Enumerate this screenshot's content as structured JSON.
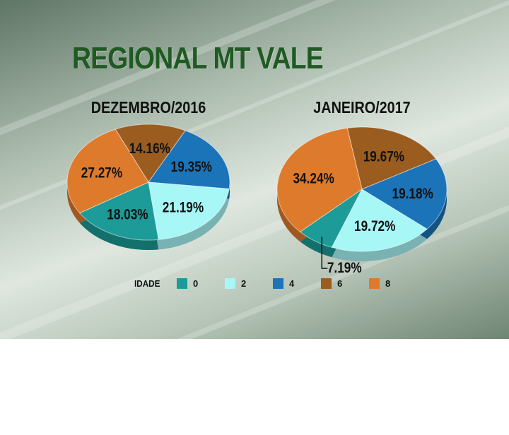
{
  "title": "REGIONAL MT VALE",
  "colors": {
    "0": "#1c9b98",
    "2": "#a8f7f7",
    "4": "#1b73b8",
    "6": "#9b5d1f",
    "8": "#de7a2c",
    "title": "#1f5a22"
  },
  "legend": {
    "label": "IDADE",
    "items": [
      {
        "key": "0",
        "label": "0"
      },
      {
        "key": "2",
        "label": "2"
      },
      {
        "key": "4",
        "label": "4"
      },
      {
        "key": "6",
        "label": "6"
      },
      {
        "key": "8",
        "label": "8"
      }
    ]
  },
  "chart_data": [
    {
      "type": "pie",
      "title": "DEZEMBRO/2016",
      "slices": [
        {
          "category": "6",
          "value": 14.16,
          "label": "14.16%"
        },
        {
          "category": "4",
          "value": 19.35,
          "label": "19.35%"
        },
        {
          "category": "2",
          "value": 21.19,
          "label": "21.19%"
        },
        {
          "category": "0",
          "value": 18.03,
          "label": "18.03%"
        },
        {
          "category": "8",
          "value": 27.27,
          "label": "27.27%"
        }
      ]
    },
    {
      "type": "pie",
      "title": "JANEIRO/2017",
      "slices": [
        {
          "category": "6",
          "value": 19.67,
          "label": "19.67%"
        },
        {
          "category": "4",
          "value": 19.18,
          "label": "19.18%"
        },
        {
          "category": "2",
          "value": 19.72,
          "label": "19.72%"
        },
        {
          "category": "0",
          "value": 7.19,
          "label": "7.19%"
        },
        {
          "category": "8",
          "value": 34.24,
          "label": "34.24%"
        }
      ]
    }
  ]
}
